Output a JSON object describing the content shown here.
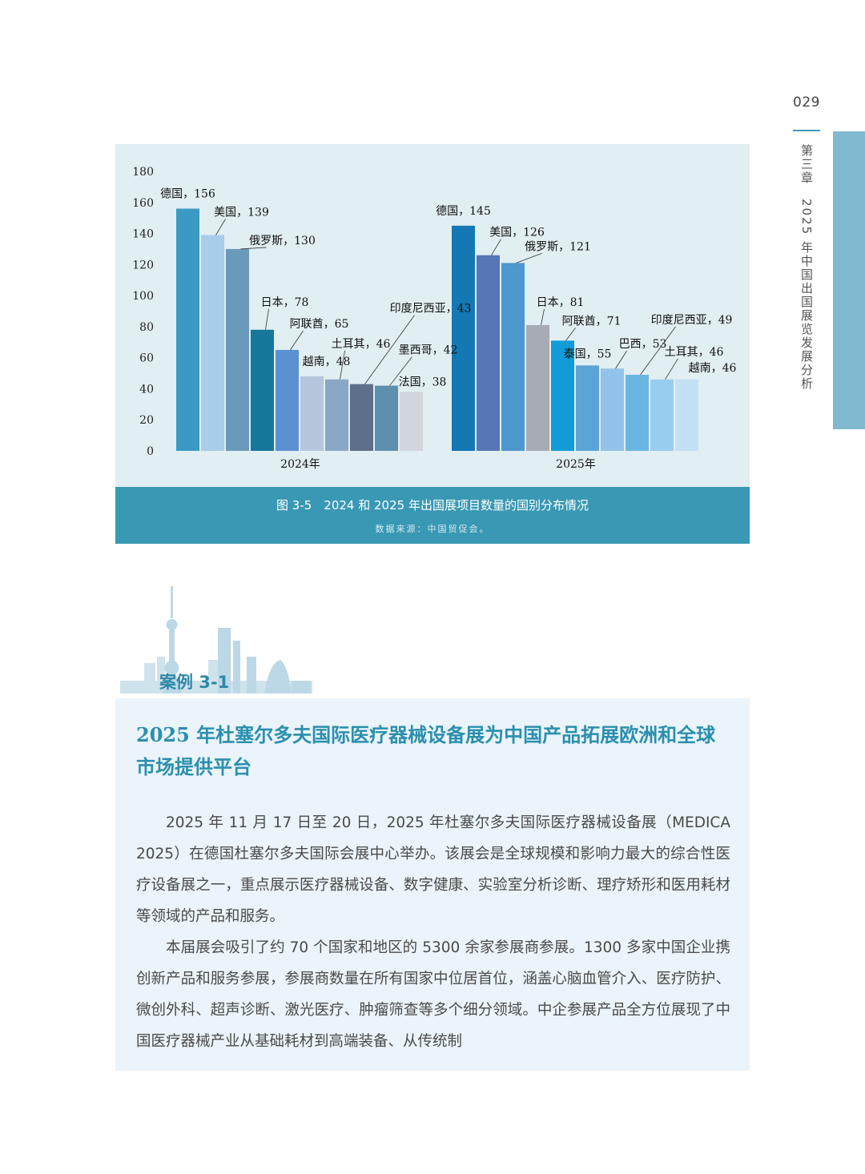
{
  "page": {
    "number": "029",
    "chapter": "第三章",
    "section": "2025 年中国出国展览发展分析"
  },
  "figure": {
    "caption": "图 3-5　2024 和 2025 年出国展项目数量的国别分布情况",
    "source": "数据来源：中国贸促会。"
  },
  "chart_data": {
    "type": "bar",
    "title": "",
    "ylim": [
      0,
      180
    ],
    "yticks": [
      0,
      20,
      40,
      60,
      80,
      100,
      120,
      140,
      160,
      180
    ],
    "grid": false,
    "groups": [
      {
        "name": "2024年",
        "bars": [
          {
            "label": "德国",
            "value": 156,
            "color": "#3a9ac4"
          },
          {
            "label": "美国",
            "value": 139,
            "color": "#a9cce9"
          },
          {
            "label": "俄罗斯",
            "value": 130,
            "color": "#6a9ab9"
          },
          {
            "label": "日本",
            "value": 78,
            "color": "#15779b"
          },
          {
            "label": "阿联酋",
            "value": 65,
            "color": "#5a91d0"
          },
          {
            "label": "越南",
            "value": 48,
            "color": "#b6c6dc"
          },
          {
            "label": "土耳其",
            "value": 46,
            "color": "#8aa8c4"
          },
          {
            "label": "印度尼西亚",
            "value": 43,
            "color": "#5d6f89"
          },
          {
            "label": "墨西哥",
            "value": 42,
            "color": "#5f8fae"
          },
          {
            "label": "法国",
            "value": 38,
            "color": "#d2d6dc"
          }
        ]
      },
      {
        "name": "2025年",
        "bars": [
          {
            "label": "德国",
            "value": 145,
            "color": "#1478b4"
          },
          {
            "label": "美国",
            "value": 126,
            "color": "#5676b5"
          },
          {
            "label": "俄罗斯",
            "value": 121,
            "color": "#4c98cf"
          },
          {
            "label": "日本",
            "value": 81,
            "color": "#a7abb2"
          },
          {
            "label": "阿联酋",
            "value": 71,
            "color": "#119cd8"
          },
          {
            "label": "泰国",
            "value": 55,
            "color": "#5da4d6"
          },
          {
            "label": "巴西",
            "value": 53,
            "color": "#93c3e8"
          },
          {
            "label": "印度尼西亚",
            "value": 49,
            "color": "#6ab6e0"
          },
          {
            "label": "土耳其",
            "value": 46,
            "color": "#99cdef"
          },
          {
            "label": "越南",
            "value": 46,
            "color": "#c4e0f5"
          }
        ]
      }
    ]
  },
  "case": {
    "label": "案例 3-1",
    "title": "2025 年杜塞尔多夫国际医疗器械设备展为中国产品拓展欧洲和全球市场提供平台",
    "paragraphs": [
      "2025 年 11 月 17 日至 20 日，2025 年杜塞尔多夫国际医疗器械设备展（MEDICA 2025）在德国杜塞尔多夫国际会展中心举办。该展会是全球规模和影响力最大的综合性医疗设备展之一，重点展示医疗器械设备、数字健康、实验室分析诊断、理疗矫形和医用耗材等领域的产品和服务。",
      "本届展会吸引了约 70 个国家和地区的 5300 余家参展商参展。1300 多家中国企业携创新产品和服务参展，参展商数量在所有国家中位居首位，涵盖心脑血管介入、医疗防护、微创外科、超声诊断、激光医疗、肿瘤筛查等多个细分领域。中企参展产品全方位展现了中国医疗器械产业从基础耗材到高端装备、从传统制"
    ]
  }
}
